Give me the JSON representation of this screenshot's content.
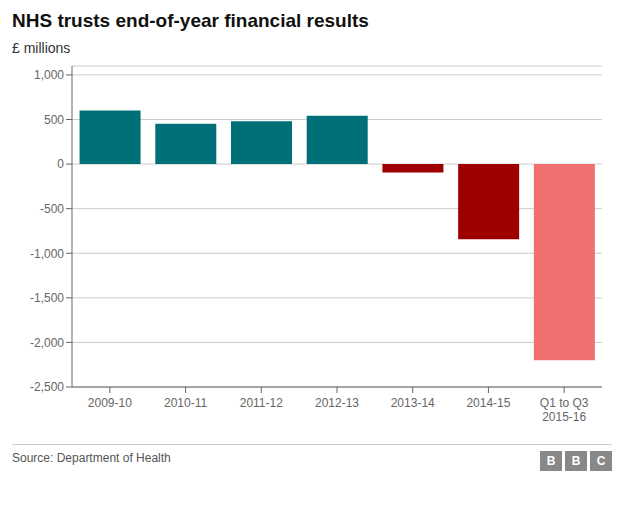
{
  "chart_data": {
    "type": "bar",
    "title": "NHS trusts end-of-year financial results",
    "y_label": "£ millions",
    "annotations": [
      "Source: Department of Health",
      "BBC"
    ],
    "categories": [
      "2009-10",
      "2010-11",
      "2011-12",
      "2012-13",
      "2013-14",
      "2014-15",
      "Q1 to Q3\n2015-16"
    ],
    "values": [
      600,
      451,
      480,
      541,
      -93,
      -843,
      -2200
    ],
    "colors": [
      "#007078",
      "#007078",
      "#007078",
      "#007078",
      "#9e0000",
      "#9e0000",
      "#f07070"
    ],
    "ylim": [
      -2500,
      1100
    ],
    "yticks": [
      {
        "value": -2500,
        "label": "-2,500"
      },
      {
        "value": -2000,
        "label": "-2,000"
      },
      {
        "value": -1500,
        "label": "-1,500"
      },
      {
        "value": -1000,
        "label": "-1,000"
      },
      -500,
      0,
      500,
      {
        "value": 1000,
        "label": "1,000"
      }
    ],
    "grid": true
  }
}
